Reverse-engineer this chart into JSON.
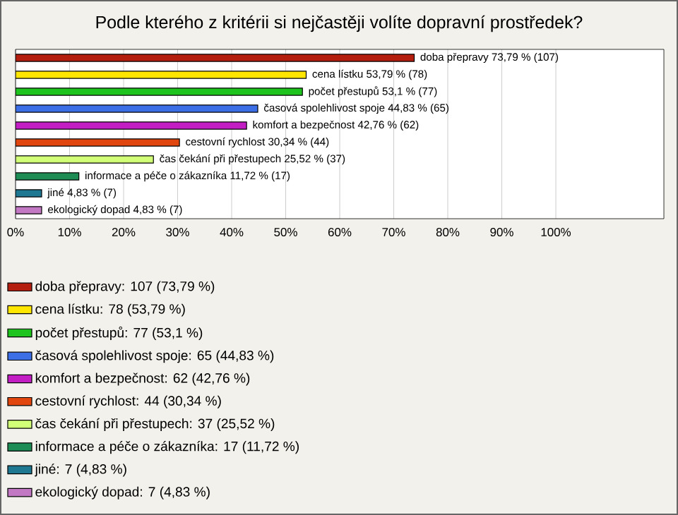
{
  "chart_data": {
    "type": "bar",
    "orientation": "horizontal",
    "title": "Podle kterého z kritérii si nejčastěji volíte dopravní prostředek?",
    "categories": [
      null,
      null,
      null,
      null,
      null,
      null,
      null,
      null,
      null,
      null
    ],
    "series": [
      {
        "name": "doba přepravy: 107 (73,79 %)",
        "color": "#b41e0f",
        "values": [
          73.79,
          null,
          null,
          null,
          null,
          null,
          null,
          null,
          null,
          null
        ],
        "value_labels": [
          "doba přepravy 73,79 % (107)",
          null,
          null,
          null,
          null,
          null,
          null,
          null,
          null,
          null
        ]
      },
      {
        "name": "cena lístku: 78 (53,79 %)",
        "color": "#ffe600",
        "values": [
          null,
          53.79,
          null,
          null,
          null,
          null,
          null,
          null,
          null,
          null
        ],
        "value_labels": [
          null,
          "cena lístku 53,79 % (78)",
          null,
          null,
          null,
          null,
          null,
          null,
          null,
          null
        ]
      },
      {
        "name": "počet přestupů: 77 (53,1 %)",
        "color": "#1ec31e",
        "values": [
          null,
          null,
          53.1,
          null,
          null,
          null,
          null,
          null,
          null,
          null
        ],
        "value_labels": [
          null,
          null,
          "počet přestupů 53,1 % (77)",
          null,
          null,
          null,
          null,
          null,
          null,
          null
        ]
      },
      {
        "name": "časová spolehlivost spoje: 65 (44,83 %)",
        "color": "#3c6ee6",
        "values": [
          null,
          null,
          null,
          44.83,
          null,
          null,
          null,
          null,
          null,
          null
        ],
        "value_labels": [
          null,
          null,
          null,
          "časová spolehlivost spoje 44,83 % (65)",
          null,
          null,
          null,
          null,
          null,
          null
        ]
      },
      {
        "name": "komfort a bezpečnost: 62 (42,76 %)",
        "color": "#c31ec3",
        "values": [
          null,
          null,
          null,
          null,
          42.76,
          null,
          null,
          null,
          null,
          null
        ],
        "value_labels": [
          null,
          null,
          null,
          null,
          "komfort a bezpečnost 42,76 % (62)",
          null,
          null,
          null,
          null,
          null
        ]
      },
      {
        "name": "cestovní rychlost: 44 (30,34 %)",
        "color": "#e1460f",
        "values": [
          null,
          null,
          null,
          null,
          null,
          30.34,
          null,
          null,
          null,
          null
        ],
        "value_labels": [
          null,
          null,
          null,
          null,
          null,
          "cestovní rychlost 30,34 % (44)",
          null,
          null,
          null,
          null
        ]
      },
      {
        "name": "čas čekání při přestupech: 37 (25,52 %)",
        "color": "#d2ff78",
        "values": [
          null,
          null,
          null,
          null,
          null,
          null,
          25.52,
          null,
          null,
          null
        ],
        "value_labels": [
          null,
          null,
          null,
          null,
          null,
          null,
          "čas čekání při přestupech 25,52 % (37)",
          null,
          null,
          null
        ]
      },
      {
        "name": "informace a péče o zákazníka: 17 (11,72 %)",
        "color": "#1e8c55",
        "values": [
          null,
          null,
          null,
          null,
          null,
          null,
          null,
          11.72,
          null,
          null
        ],
        "value_labels": [
          null,
          null,
          null,
          null,
          null,
          null,
          null,
          "informace a péče o zákazníka 11,72 % (17)",
          null,
          null
        ]
      },
      {
        "name": "jiné: 7 (4,83 %)",
        "color": "#1e7891",
        "values": [
          null,
          null,
          null,
          null,
          null,
          null,
          null,
          null,
          4.83,
          null
        ],
        "value_labels": [
          null,
          null,
          null,
          null,
          null,
          null,
          null,
          null,
          "jiné 4,83 % (7)",
          null
        ]
      },
      {
        "name": "ekologický dopad: 7 (4,83 %)",
        "color": "#c378c3",
        "values": [
          null,
          null,
          null,
          null,
          null,
          null,
          null,
          null,
          null,
          4.83
        ],
        "value_labels": [
          null,
          null,
          null,
          null,
          null,
          null,
          null,
          null,
          null,
          "ekologický dopad 4,83 % (7)"
        ]
      }
    ],
    "xlim": [
      0,
      120
    ],
    "xticks": [
      {
        "value": 0,
        "label": "0%"
      },
      {
        "value": 10,
        "label": "10%"
      },
      {
        "value": 20,
        "label": "20%"
      },
      {
        "value": 30,
        "label": "30%"
      },
      {
        "value": 40,
        "label": "40%"
      },
      {
        "value": 50,
        "label": "50%"
      },
      {
        "value": 60,
        "label": "60%"
      },
      {
        "value": 70,
        "label": "70%"
      },
      {
        "value": 80,
        "label": "80%"
      },
      {
        "value": 90,
        "label": "90%"
      },
      {
        "value": 100,
        "label": "100%"
      }
    ],
    "grid": "x",
    "legend": "bottom"
  }
}
